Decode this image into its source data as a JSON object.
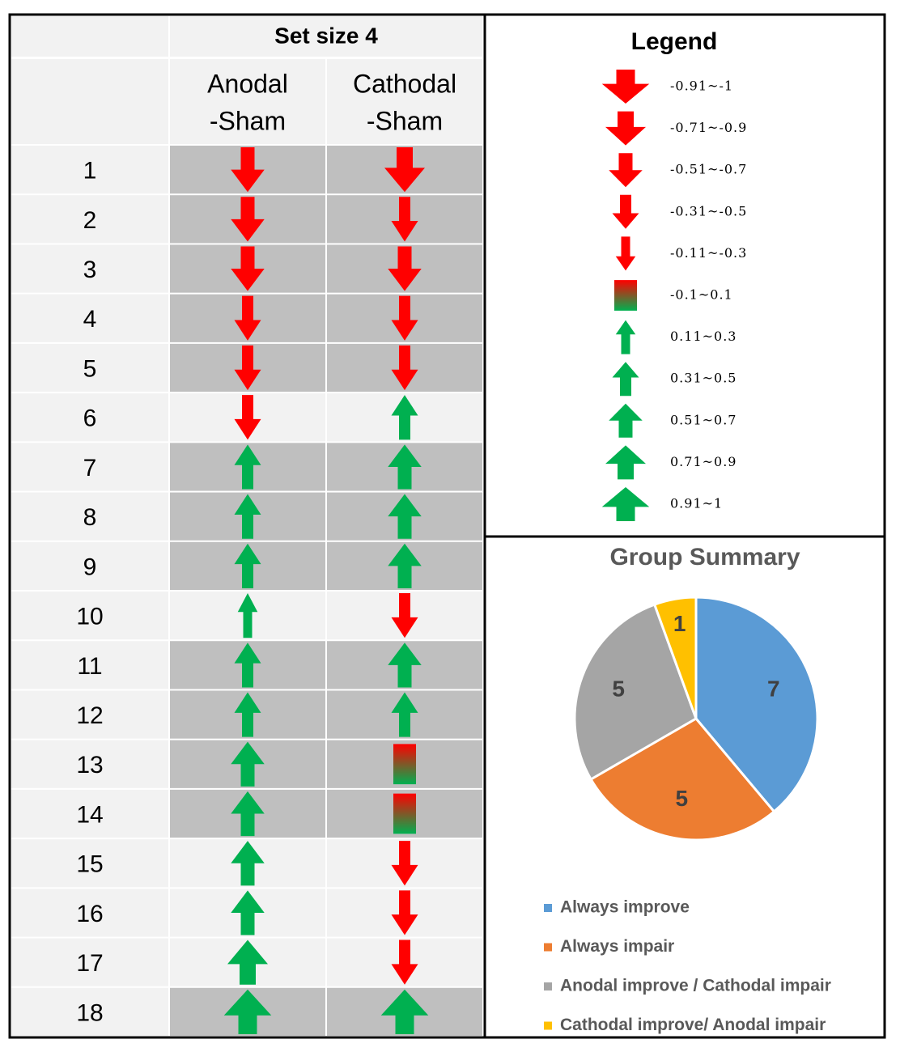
{
  "table": {
    "title": "Set size 4",
    "columns": [
      [
        "Anodal",
        "-Sham"
      ],
      [
        "Cathodal",
        "-Sham"
      ]
    ],
    "rows": [
      {
        "label": "1",
        "shaded": true,
        "cells": [
          -3,
          -4
        ]
      },
      {
        "label": "2",
        "shaded": true,
        "cells": [
          -3,
          -2
        ]
      },
      {
        "label": "3",
        "shaded": true,
        "cells": [
          -3,
          -3
        ]
      },
      {
        "label": "4",
        "shaded": true,
        "cells": [
          -2,
          -2
        ]
      },
      {
        "label": "5",
        "shaded": true,
        "cells": [
          -2,
          -2
        ]
      },
      {
        "label": "6",
        "shaded": false,
        "cells": [
          -2,
          2
        ]
      },
      {
        "label": "7",
        "shaded": true,
        "cells": [
          2,
          3
        ]
      },
      {
        "label": "8",
        "shaded": true,
        "cells": [
          2,
          3
        ]
      },
      {
        "label": "9",
        "shaded": true,
        "cells": [
          2,
          3
        ]
      },
      {
        "label": "10",
        "shaded": false,
        "cells": [
          1,
          -2
        ]
      },
      {
        "label": "11",
        "shaded": true,
        "cells": [
          2,
          3
        ]
      },
      {
        "label": "12",
        "shaded": true,
        "cells": [
          2,
          2
        ]
      },
      {
        "label": "13",
        "shaded": true,
        "cells": [
          3,
          0
        ]
      },
      {
        "label": "14",
        "shaded": true,
        "cells": [
          3,
          0
        ]
      },
      {
        "label": "15",
        "shaded": false,
        "cells": [
          3,
          -2
        ]
      },
      {
        "label": "16",
        "shaded": false,
        "cells": [
          3,
          -2
        ]
      },
      {
        "label": "17",
        "shaded": false,
        "cells": [
          4,
          -2
        ]
      },
      {
        "label": "18",
        "shaded": true,
        "cells": [
          5,
          5
        ]
      }
    ]
  },
  "legend": {
    "title": "Legend",
    "items": [
      {
        "label": "-0.91~-1",
        "level": -5
      },
      {
        "label": "-0.71~-0.9",
        "level": -4
      },
      {
        "label": "-0.51~-0.7",
        "level": -3
      },
      {
        "label": "-0.31~-0.5",
        "level": -2
      },
      {
        "label": "-0.11~-0.3",
        "level": -1
      },
      {
        "label": "-0.1~0.1",
        "level": 0
      },
      {
        "label": "0.11~0.3",
        "level": 1
      },
      {
        "label": "0.31~0.5",
        "level": 2
      },
      {
        "label": "0.51~0.7",
        "level": 3
      },
      {
        "label": "0.71~0.9",
        "level": 4
      },
      {
        "label": "0.91~1",
        "level": 5
      }
    ]
  },
  "chart_data": {
    "type": "pie",
    "title": "Group Summary",
    "categories": [
      "Always improve",
      "Always impair",
      "Anodal improve / Cathodal impair",
      "Cathodal improve/ Anodal impair"
    ],
    "values": [
      7,
      5,
      5,
      1
    ],
    "colors": [
      "#5b9bd5",
      "#ed7d31",
      "#a5a5a5",
      "#ffc000"
    ]
  }
}
